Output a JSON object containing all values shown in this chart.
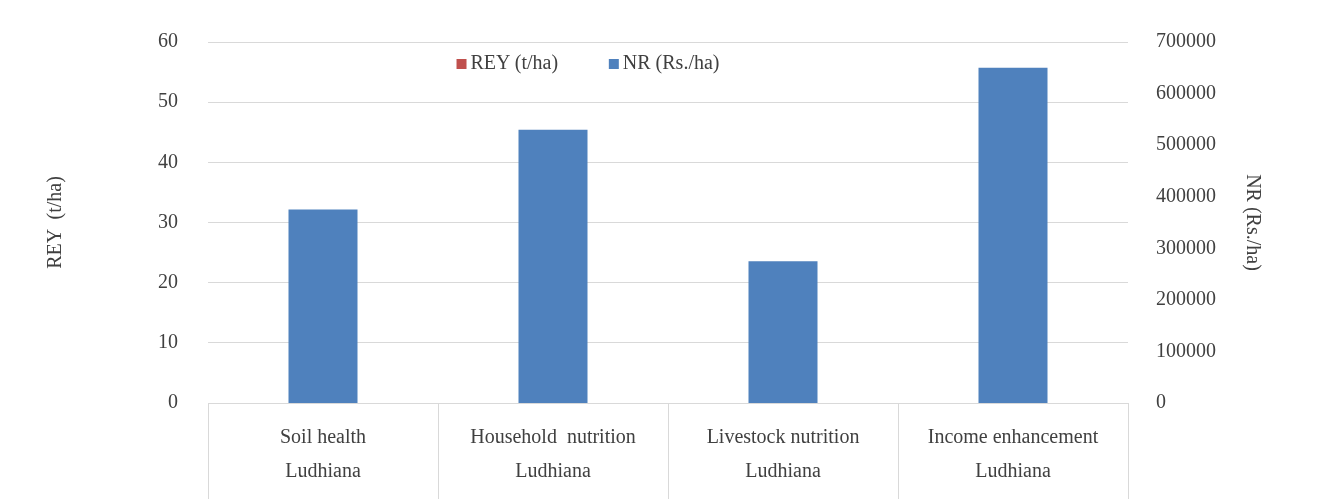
{
  "chart_data": {
    "type": "bar",
    "ylabel": "REY  (t/ha)",
    "y2label": "NR (Rs./ha)",
    "categories": [
      "Soil health\nLudhiana",
      "Household  nutrition\nLudhiana",
      "Livestock nutrition\nLudhiana",
      "Income enhancement\nLudhiana"
    ],
    "series": [
      {
        "name": "REY (t/ha)",
        "color": "#c0504d",
        "values": [
          null,
          null,
          null,
          null
        ]
      },
      {
        "name": "NR (Rs./ha)",
        "color": "#4f81bd",
        "axis": "y2",
        "values": [
          375000,
          530000,
          275000,
          650000
        ]
      }
    ],
    "ylim": [
      0,
      60
    ],
    "yticks": [
      0,
      10,
      20,
      30,
      40,
      50,
      60
    ],
    "y2lim": [
      0,
      700000
    ],
    "y2ticks": [
      0,
      100000,
      200000,
      300000,
      400000,
      500000,
      600000,
      700000
    ],
    "grid": "y",
    "legend": "top"
  }
}
